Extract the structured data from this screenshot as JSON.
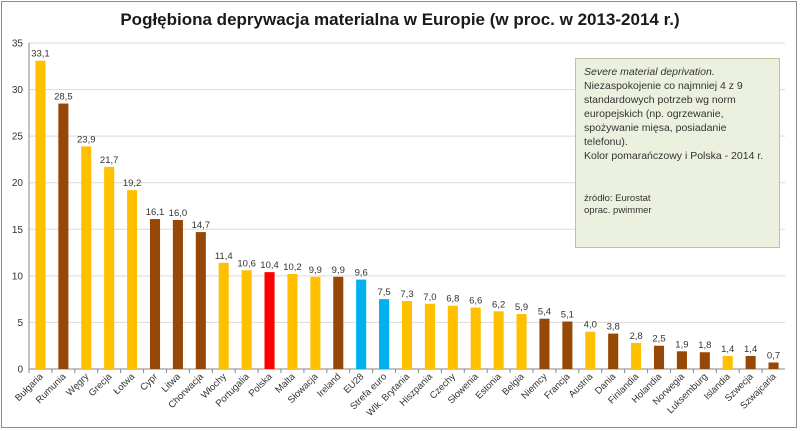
{
  "chart_data": {
    "type": "bar",
    "title": "Pogłębiona deprywacja materialna w Europie (w proc. w 2013-2014 r.)",
    "xlabel": "",
    "ylabel": "",
    "ylim": [
      0,
      35
    ],
    "yticks": [
      0,
      5,
      10,
      15,
      20,
      25,
      30,
      35
    ],
    "grid": true,
    "categories": [
      "Bułgaria",
      "Rumunia",
      "Węgry",
      "Grecja",
      "Łotwa",
      "Cypr",
      "Litwa",
      "Chorwacja",
      "Włochy",
      "Portugalia",
      "Polska",
      "Malta",
      "Słowacja",
      "Ireland",
      "EU28",
      "Strefa euro",
      "Wlk. Brytania",
      "Hiszpania",
      "Czechy",
      "Słowenia",
      "Estonia",
      "Belgia",
      "Niemcy",
      "Francja",
      "Austria",
      "Dania",
      "Finlandia",
      "Holandia",
      "Norwegia",
      "Luksemburg",
      "Islandia",
      "Szwecja",
      "Szwajcaria"
    ],
    "values": [
      33.1,
      28.5,
      23.9,
      21.7,
      19.2,
      16.1,
      16.0,
      14.7,
      11.4,
      10.6,
      10.4,
      10.2,
      9.9,
      9.9,
      9.6,
      7.5,
      7.3,
      7.0,
      6.8,
      6.6,
      6.2,
      5.9,
      5.4,
      5.1,
      4.0,
      3.8,
      2.8,
      2.5,
      1.9,
      1.8,
      1.4,
      1.4,
      0.7
    ],
    "value_labels": [
      "33,1",
      "28,5",
      "23,9",
      "21,7",
      "19,2",
      "16,1",
      "16,0",
      "14,7",
      "11,4",
      "10,6",
      "10,4",
      "10,2",
      "9,9",
      "9,9",
      "9,6",
      "7,5",
      "7,3",
      "7,0",
      "6,8",
      "6,6",
      "6,2",
      "5,9",
      "5,4",
      "5,1",
      "4,0",
      "3,8",
      "2,8",
      "2,5",
      "1,9",
      "1,8",
      "1,4",
      "1,4",
      "0,7"
    ],
    "bar_colors": [
      "orange",
      "brown",
      "orange",
      "orange",
      "orange",
      "brown",
      "brown",
      "brown",
      "orange",
      "orange",
      "red",
      "orange",
      "orange",
      "brown",
      "blue",
      "blue",
      "orange",
      "orange",
      "orange",
      "orange",
      "orange",
      "orange",
      "brown",
      "brown",
      "orange",
      "brown",
      "orange",
      "brown",
      "brown",
      "brown",
      "orange",
      "brown",
      "brown"
    ]
  },
  "colors": {
    "orange": "#ffc000",
    "brown": "#974706",
    "red": "#ff0000",
    "blue": "#00b0f0",
    "grid": "#d9d9d9",
    "axis": "#868686"
  },
  "note": {
    "heading": "Severe material deprivation.",
    "line1": "Niezaspokojenie co najmniej 4 z 9",
    "line2": "standardowych potrzeb wg norm",
    "line3": "europejskich (np. ogrzewanie,",
    "line4": "spożywanie mięsa, posiadanie",
    "line5": "telefonu).",
    "line6": "Kolor pomarańczowy i Polska - 2014 r.",
    "source1": "źródło: Eurostat",
    "source2": "oprac. pwimmer"
  }
}
